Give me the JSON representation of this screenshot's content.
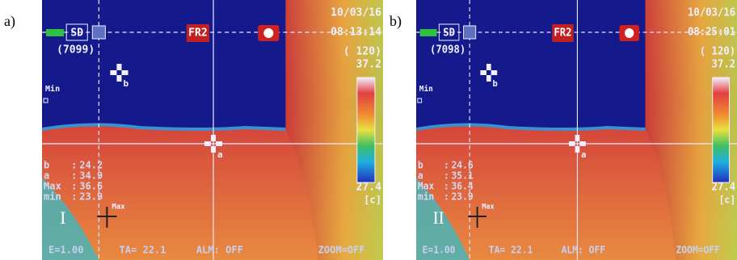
{
  "panels": [
    {
      "label": "a)",
      "sd": "SD",
      "counter": "(7099)",
      "mode": "FR2",
      "date": "10/03/16",
      "time": "08:13:14",
      "range": "( 120)",
      "max_temp": "37.2",
      "min_temp": "27.4",
      "unit": "[c]",
      "min_marker": "Min",
      "spot_b": "b",
      "spot_a": "a",
      "max_marker": "Max",
      "readings": [
        {
          "key": "b",
          "value": "24.2"
        },
        {
          "key": "a",
          "value": "34.9"
        },
        {
          "key": "Max",
          "value": "36.6"
        },
        {
          "key": "min",
          "value": "23.9"
        }
      ],
      "roman": "I",
      "status": [
        "E=1.00",
        "TA= 22.1",
        "ALM: OFF",
        "ZOOM=OFF"
      ]
    },
    {
      "label": "b)",
      "sd": "SD",
      "counter": "(7098)",
      "mode": "FR2",
      "date": "10/03/16",
      "time": "08:25:01",
      "range": "( 120)",
      "max_temp": "37.2",
      "min_temp": "27.4",
      "unit": "[c]",
      "min_marker": "Min",
      "spot_b": "b",
      "spot_a": "a",
      "max_marker": "Max",
      "readings": [
        {
          "key": "b",
          "value": "24.6"
        },
        {
          "key": "a",
          "value": "35.1"
        },
        {
          "key": "Max",
          "value": "36.4"
        },
        {
          "key": "min",
          "value": "23.9"
        }
      ],
      "roman": "II",
      "status": [
        "E=1.00",
        "TA= 22.1",
        "ALM: OFF",
        "ZOOM=OFF"
      ]
    }
  ]
}
